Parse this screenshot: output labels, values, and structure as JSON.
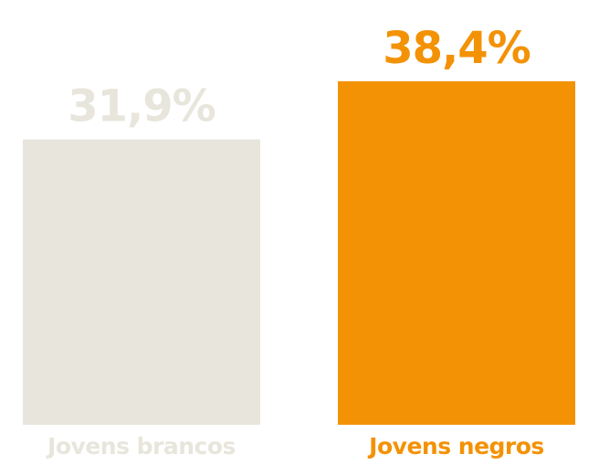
{
  "chart_data": {
    "type": "bar",
    "categories": [
      "Jovens brancos",
      "Jovens negros"
    ],
    "values": [
      31.9,
      38.4
    ],
    "value_labels": [
      "31,9%",
      "38,4%"
    ],
    "colors": [
      "#e8e6dc",
      "#f39205"
    ]
  }
}
